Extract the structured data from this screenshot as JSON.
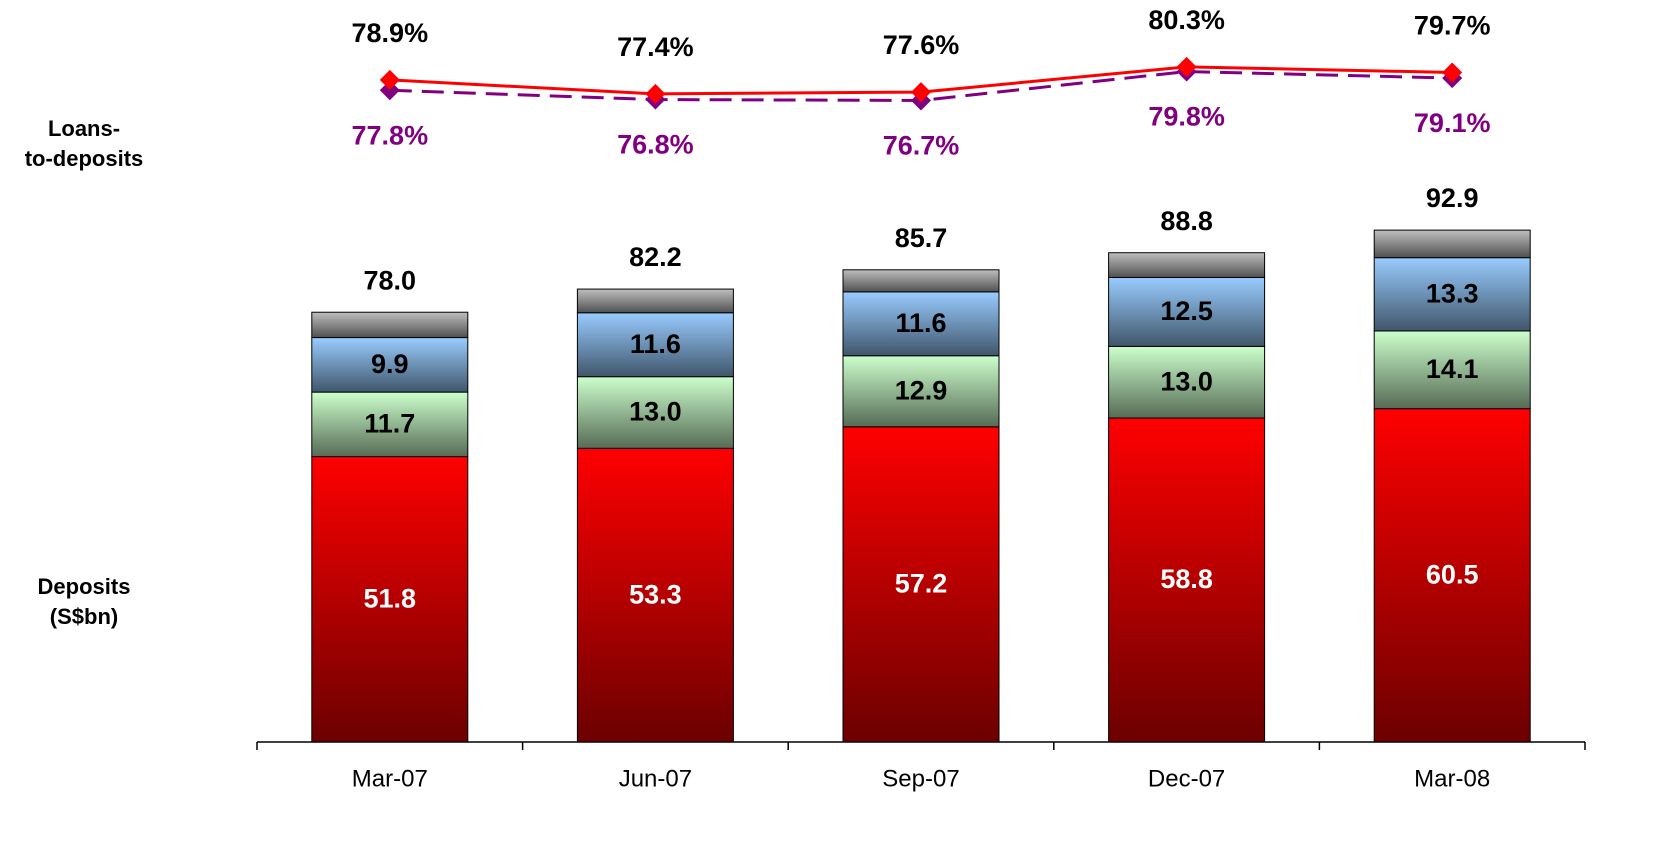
{
  "chart_data": {
    "type": "bar",
    "stacked": true,
    "row_labels": [
      "Loans-to-deposits",
      "Deposits (S$bn)"
    ],
    "categories": [
      "Mar-07",
      "Jun-07",
      "Sep-07",
      "Dec-07",
      "Mar-08"
    ],
    "ylim": [
      0,
      100
    ],
    "y2lim": [
      70,
      85
    ],
    "series": [
      {
        "color": "#ff0000",
        "label_color": "#ffffff",
        "values": [
          51.8,
          53.3,
          57.2,
          58.8,
          60.5
        ],
        "value_labels": [
          "51.8",
          "53.3",
          "57.2",
          "58.8",
          "60.5"
        ]
      },
      {
        "color": "#ccffcc",
        "label_color": "#000000",
        "values": [
          11.7,
          13.0,
          12.9,
          13.0,
          14.1
        ],
        "value_labels": [
          "11.7",
          "13.0",
          "12.9",
          "13.0",
          "14.1"
        ]
      },
      {
        "color": "#99ccff",
        "label_color": "#000000",
        "values": [
          9.9,
          11.6,
          11.6,
          12.5,
          13.3
        ],
        "value_labels": [
          "9.9",
          "11.6",
          "11.6",
          "12.5",
          "13.3"
        ]
      },
      {
        "color": "#bfbfbf",
        "values": [
          4.6,
          4.3,
          4.0,
          4.5,
          5.0
        ]
      },
      {
        "type": "line",
        "axis": "y2",
        "color": "#ff0000",
        "label_color": "#000000",
        "label_side": "above",
        "dashed": false,
        "values": [
          78.9,
          77.4,
          77.6,
          80.3,
          79.7
        ],
        "value_labels": [
          "78.9%",
          "77.4%",
          "77.6%",
          "80.3%",
          "79.7%"
        ]
      },
      {
        "type": "line",
        "axis": "y2",
        "color": "#800080",
        "label_color": "#800080",
        "label_side": "below",
        "dashed": true,
        "values": [
          77.8,
          76.8,
          76.7,
          79.8,
          79.1
        ],
        "value_labels": [
          "77.8%",
          "76.8%",
          "76.7%",
          "79.8%",
          "79.1%"
        ]
      }
    ],
    "totals": {
      "values": [
        78.0,
        82.2,
        85.7,
        88.8,
        92.9
      ],
      "value_labels": [
        "78.0",
        "82.2",
        "85.7",
        "88.8",
        "92.9"
      ]
    }
  }
}
